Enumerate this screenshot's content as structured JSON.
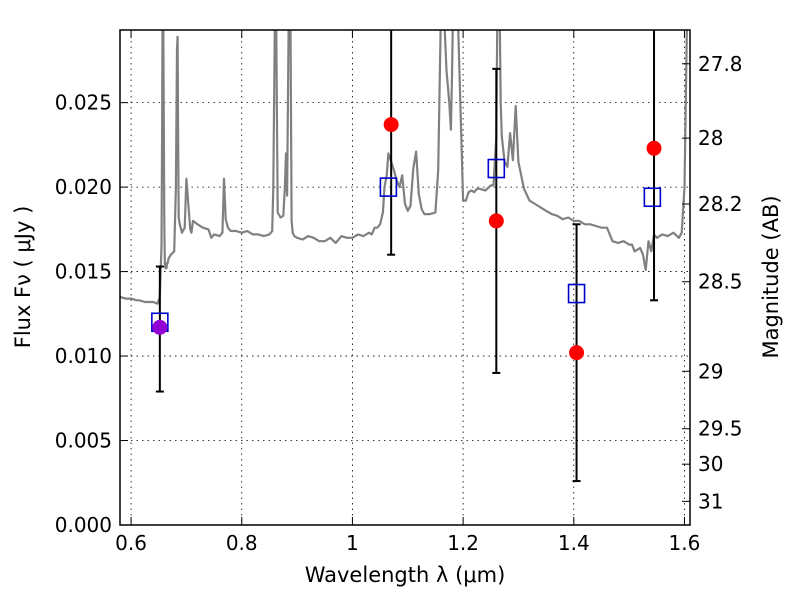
{
  "chart_data": {
    "type": "scatter",
    "title": "",
    "xlabel": "Wavelength  λ (μm)",
    "ylabel": "Flux  Fν  ( μJy )",
    "y2label": "Magnitude (AB)",
    "xlim": [
      0.58,
      1.61
    ],
    "ylim": [
      0.0,
      0.0293
    ],
    "grid": true,
    "x_ticks": [
      0.6,
      0.8,
      1.0,
      1.2,
      1.4,
      1.6
    ],
    "x_tick_labels": [
      "0.6",
      "0.8",
      "1",
      "1.2",
      "1.4",
      "1.6"
    ],
    "y_ticks": [
      0.0,
      0.005,
      0.01,
      0.015,
      0.02,
      0.025
    ],
    "y_tick_labels": [
      "0.000",
      "0.005",
      "0.010",
      "0.015",
      "0.020",
      "0.025"
    ],
    "y2_ticks": [
      {
        "label": "27.8",
        "flux": 0.0273
      },
      {
        "label": "28",
        "flux": 0.0229
      },
      {
        "label": "28.2",
        "flux": 0.019
      },
      {
        "label": "28.5",
        "flux": 0.0144
      },
      {
        "label": "29",
        "flux": 0.0091
      },
      {
        "label": "29.5",
        "flux": 0.0057
      },
      {
        "label": "30",
        "flux": 0.0036
      },
      {
        "label": "31",
        "flux": 0.0014
      }
    ],
    "series": [
      {
        "kind": "line",
        "color": "#808080",
        "x": [
          0.58,
          0.59,
          0.6,
          0.61,
          0.615,
          0.625,
          0.64,
          0.648,
          0.652,
          0.655,
          0.656,
          0.657,
          0.658,
          0.66,
          0.661,
          0.662,
          0.663,
          0.664,
          0.665,
          0.666,
          0.668,
          0.672,
          0.678,
          0.681,
          0.683,
          0.684,
          0.685,
          0.686,
          0.688,
          0.692,
          0.697,
          0.7,
          0.705,
          0.707,
          0.709,
          0.712,
          0.72,
          0.73,
          0.74,
          0.745,
          0.75,
          0.76,
          0.765,
          0.768,
          0.771,
          0.775,
          0.78,
          0.79,
          0.8,
          0.81,
          0.82,
          0.83,
          0.84,
          0.85,
          0.855,
          0.857,
          0.86,
          0.862,
          0.865,
          0.87,
          0.875,
          0.878,
          0.88,
          0.882,
          0.885,
          0.887,
          0.888,
          0.89,
          0.892,
          0.895,
          0.9,
          0.91,
          0.92,
          0.93,
          0.94,
          0.95,
          0.96,
          0.97,
          0.98,
          0.99,
          1.0,
          1.01,
          1.02,
          1.03,
          1.035,
          1.04,
          1.045,
          1.05,
          1.055,
          1.058,
          1.062,
          1.065,
          1.07,
          1.075,
          1.08,
          1.085,
          1.09,
          1.095,
          1.1,
          1.105,
          1.11,
          1.115,
          1.12,
          1.125,
          1.13,
          1.14,
          1.15,
          1.155,
          1.16,
          1.162,
          1.165,
          1.17,
          1.175,
          1.178,
          1.18,
          1.182,
          1.19,
          1.2,
          1.205,
          1.21,
          1.215,
          1.22,
          1.225,
          1.23,
          1.24,
          1.25,
          1.255,
          1.26,
          1.262,
          1.264,
          1.266,
          1.268,
          1.27,
          1.275,
          1.28,
          1.285,
          1.29,
          1.295,
          1.3,
          1.31,
          1.32,
          1.33,
          1.34,
          1.35,
          1.36,
          1.37,
          1.38,
          1.39,
          1.4,
          1.41,
          1.42,
          1.43,
          1.44,
          1.45,
          1.46,
          1.47,
          1.48,
          1.49,
          1.5,
          1.505,
          1.51,
          1.52,
          1.525,
          1.53,
          1.535,
          1.54,
          1.545,
          1.55,
          1.56,
          1.57,
          1.58,
          1.59,
          1.595,
          1.6,
          1.605,
          1.61
        ],
        "y": [
          0.0135,
          0.0134,
          0.0134,
          0.0133,
          0.0133,
          0.0132,
          0.0132,
          0.0131,
          0.0135,
          0.0165,
          0.0231,
          0.0307,
          0.0307,
          0.018,
          0.0155,
          0.0152,
          0.0154,
          0.0152,
          0.0155,
          0.0155,
          0.0158,
          0.016,
          0.0162,
          0.02,
          0.0282,
          0.0289,
          0.0232,
          0.0182,
          0.0178,
          0.0173,
          0.0176,
          0.0205,
          0.0183,
          0.0175,
          0.0173,
          0.018,
          0.0178,
          0.0176,
          0.0175,
          0.017,
          0.0172,
          0.0171,
          0.0173,
          0.0205,
          0.0181,
          0.0176,
          0.0174,
          0.0174,
          0.0173,
          0.0174,
          0.0172,
          0.0172,
          0.0171,
          0.0172,
          0.0174,
          0.02,
          0.0307,
          0.0307,
          0.0185,
          0.0182,
          0.0183,
          0.02,
          0.022,
          0.0195,
          0.0307,
          0.0307,
          0.0307,
          0.018,
          0.0173,
          0.0171,
          0.017,
          0.0169,
          0.0171,
          0.017,
          0.0168,
          0.0168,
          0.017,
          0.0167,
          0.0171,
          0.017,
          0.017,
          0.0172,
          0.0171,
          0.0173,
          0.0172,
          0.0176,
          0.0176,
          0.0178,
          0.0185,
          0.02,
          0.0207,
          0.022,
          0.0215,
          0.021,
          0.0204,
          0.02,
          0.0207,
          0.019,
          0.0186,
          0.0189,
          0.0211,
          0.0221,
          0.0196,
          0.0187,
          0.0184,
          0.0184,
          0.0185,
          0.021,
          0.0307,
          0.0307,
          0.0307,
          0.0269,
          0.025,
          0.0234,
          0.0266,
          0.0307,
          0.0307,
          0.0192,
          0.0192,
          0.0197,
          0.0198,
          0.0197,
          0.0199,
          0.0199,
          0.0198,
          0.0201,
          0.0201,
          0.023,
          0.0307,
          0.0307,
          0.0307,
          0.025,
          0.023,
          0.0215,
          0.0212,
          0.0232,
          0.0216,
          0.0248,
          0.0215,
          0.0199,
          0.0192,
          0.019,
          0.0188,
          0.0186,
          0.0184,
          0.0183,
          0.0181,
          0.0182,
          0.018,
          0.018,
          0.0178,
          0.0178,
          0.0177,
          0.0176,
          0.0176,
          0.0168,
          0.0167,
          0.0168,
          0.0166,
          0.0166,
          0.0162,
          0.0164,
          0.016,
          0.0151,
          0.0168,
          0.0162,
          0.0172,
          0.017,
          0.0172,
          0.0171,
          0.0173,
          0.017,
          0.0173,
          0.02,
          0.0307,
          0.0307
        ]
      },
      {
        "kind": "model-points",
        "marker": "open-square",
        "color": "#0000cc",
        "x": [
          0.652,
          1.065,
          1.26,
          1.405,
          1.542
        ],
        "y": [
          0.012,
          0.02,
          0.0211,
          0.0137,
          0.0194
        ]
      },
      {
        "kind": "observed-points",
        "marker": "filled-circle",
        "colors": [
          "#9400d3",
          "#ff0000",
          "#ff0000",
          "#ff0000",
          "#ff0000"
        ],
        "x": [
          0.652,
          1.07,
          1.26,
          1.405,
          1.545
        ],
        "y": [
          0.0117,
          0.0237,
          0.018,
          0.0102,
          0.0223
        ],
        "err_low": [
          0.0079,
          0.016,
          0.009,
          0.0026,
          0.0133
        ],
        "err_high": [
          0.0153,
          0.031,
          0.027,
          0.0178,
          0.031
        ]
      }
    ]
  }
}
